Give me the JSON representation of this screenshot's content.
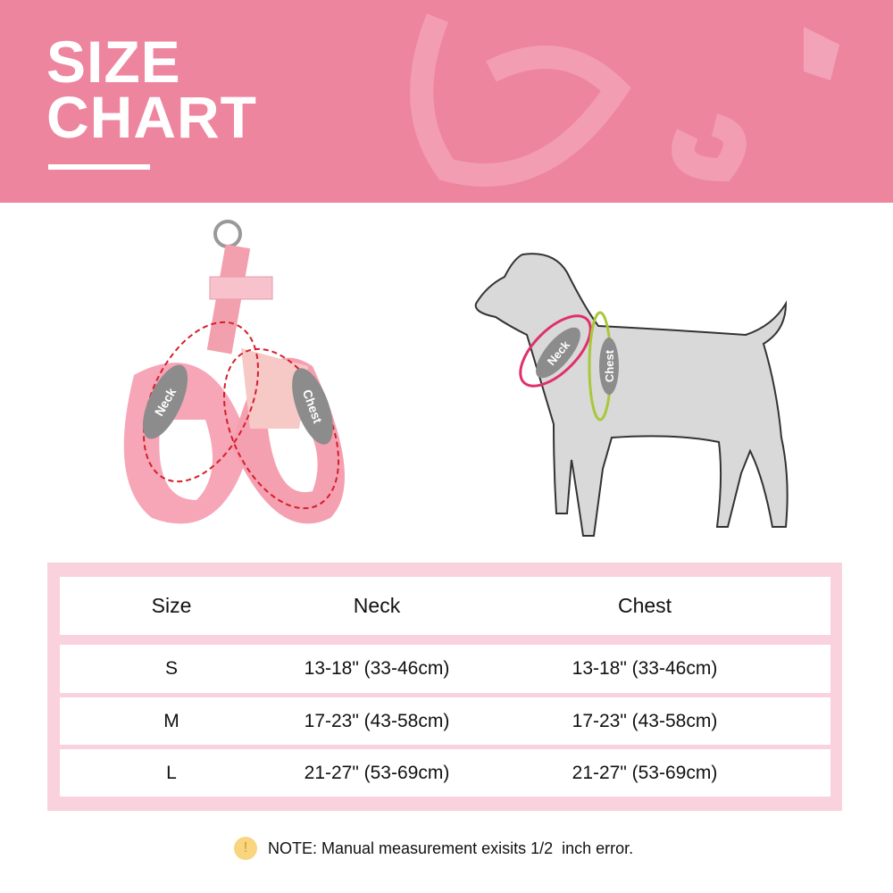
{
  "header": {
    "title_line1": "SIZE",
    "title_line2": "CHART"
  },
  "labels": {
    "neck": "Neck",
    "chest": "Chest"
  },
  "table": {
    "headers": [
      "Size",
      "Neck",
      "Chest"
    ],
    "rows": [
      [
        "S",
        "13-18\" (33-46cm)",
        "13-18\" (33-46cm)"
      ],
      [
        "M",
        "17-23\" (43-58cm)",
        "17-23\" (43-58cm)"
      ],
      [
        "L",
        "21-27\" (53-69cm)",
        "21-27\" (53-69cm)"
      ]
    ]
  },
  "note": {
    "icon": "warning-icon",
    "text": "NOTE: Manual measurement exisits 1/2  inch error."
  },
  "colors": {
    "banner": "#ee859f",
    "table_frame": "#f9d2de",
    "neck_line": "#e0306a",
    "chest_line": "#a8c83a",
    "warning": "#f8d57e"
  }
}
